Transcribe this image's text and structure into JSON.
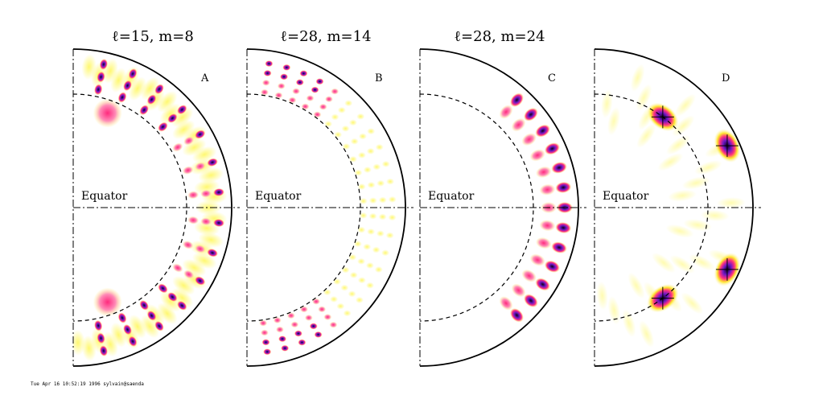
{
  "panels": [
    {
      "id": "A",
      "title": "ℓ=15, m=8"
    },
    {
      "id": "B",
      "title": "ℓ=28, m=14"
    },
    {
      "id": "C",
      "title": "ℓ=28, m=24"
    },
    {
      "id": "D",
      "title": ""
    }
  ],
  "equator_label": "Equator",
  "footer": "Tue Apr 16 10:52:19 1996 sylvain@saenda",
  "colors": {
    "outline": "#000000",
    "heat_low": "#fff9c8",
    "heat_mid": "#ffe830",
    "heat_high": "#ff2f7f",
    "heat_peak": "#6b17c6",
    "heat_core": "#150020"
  }
}
